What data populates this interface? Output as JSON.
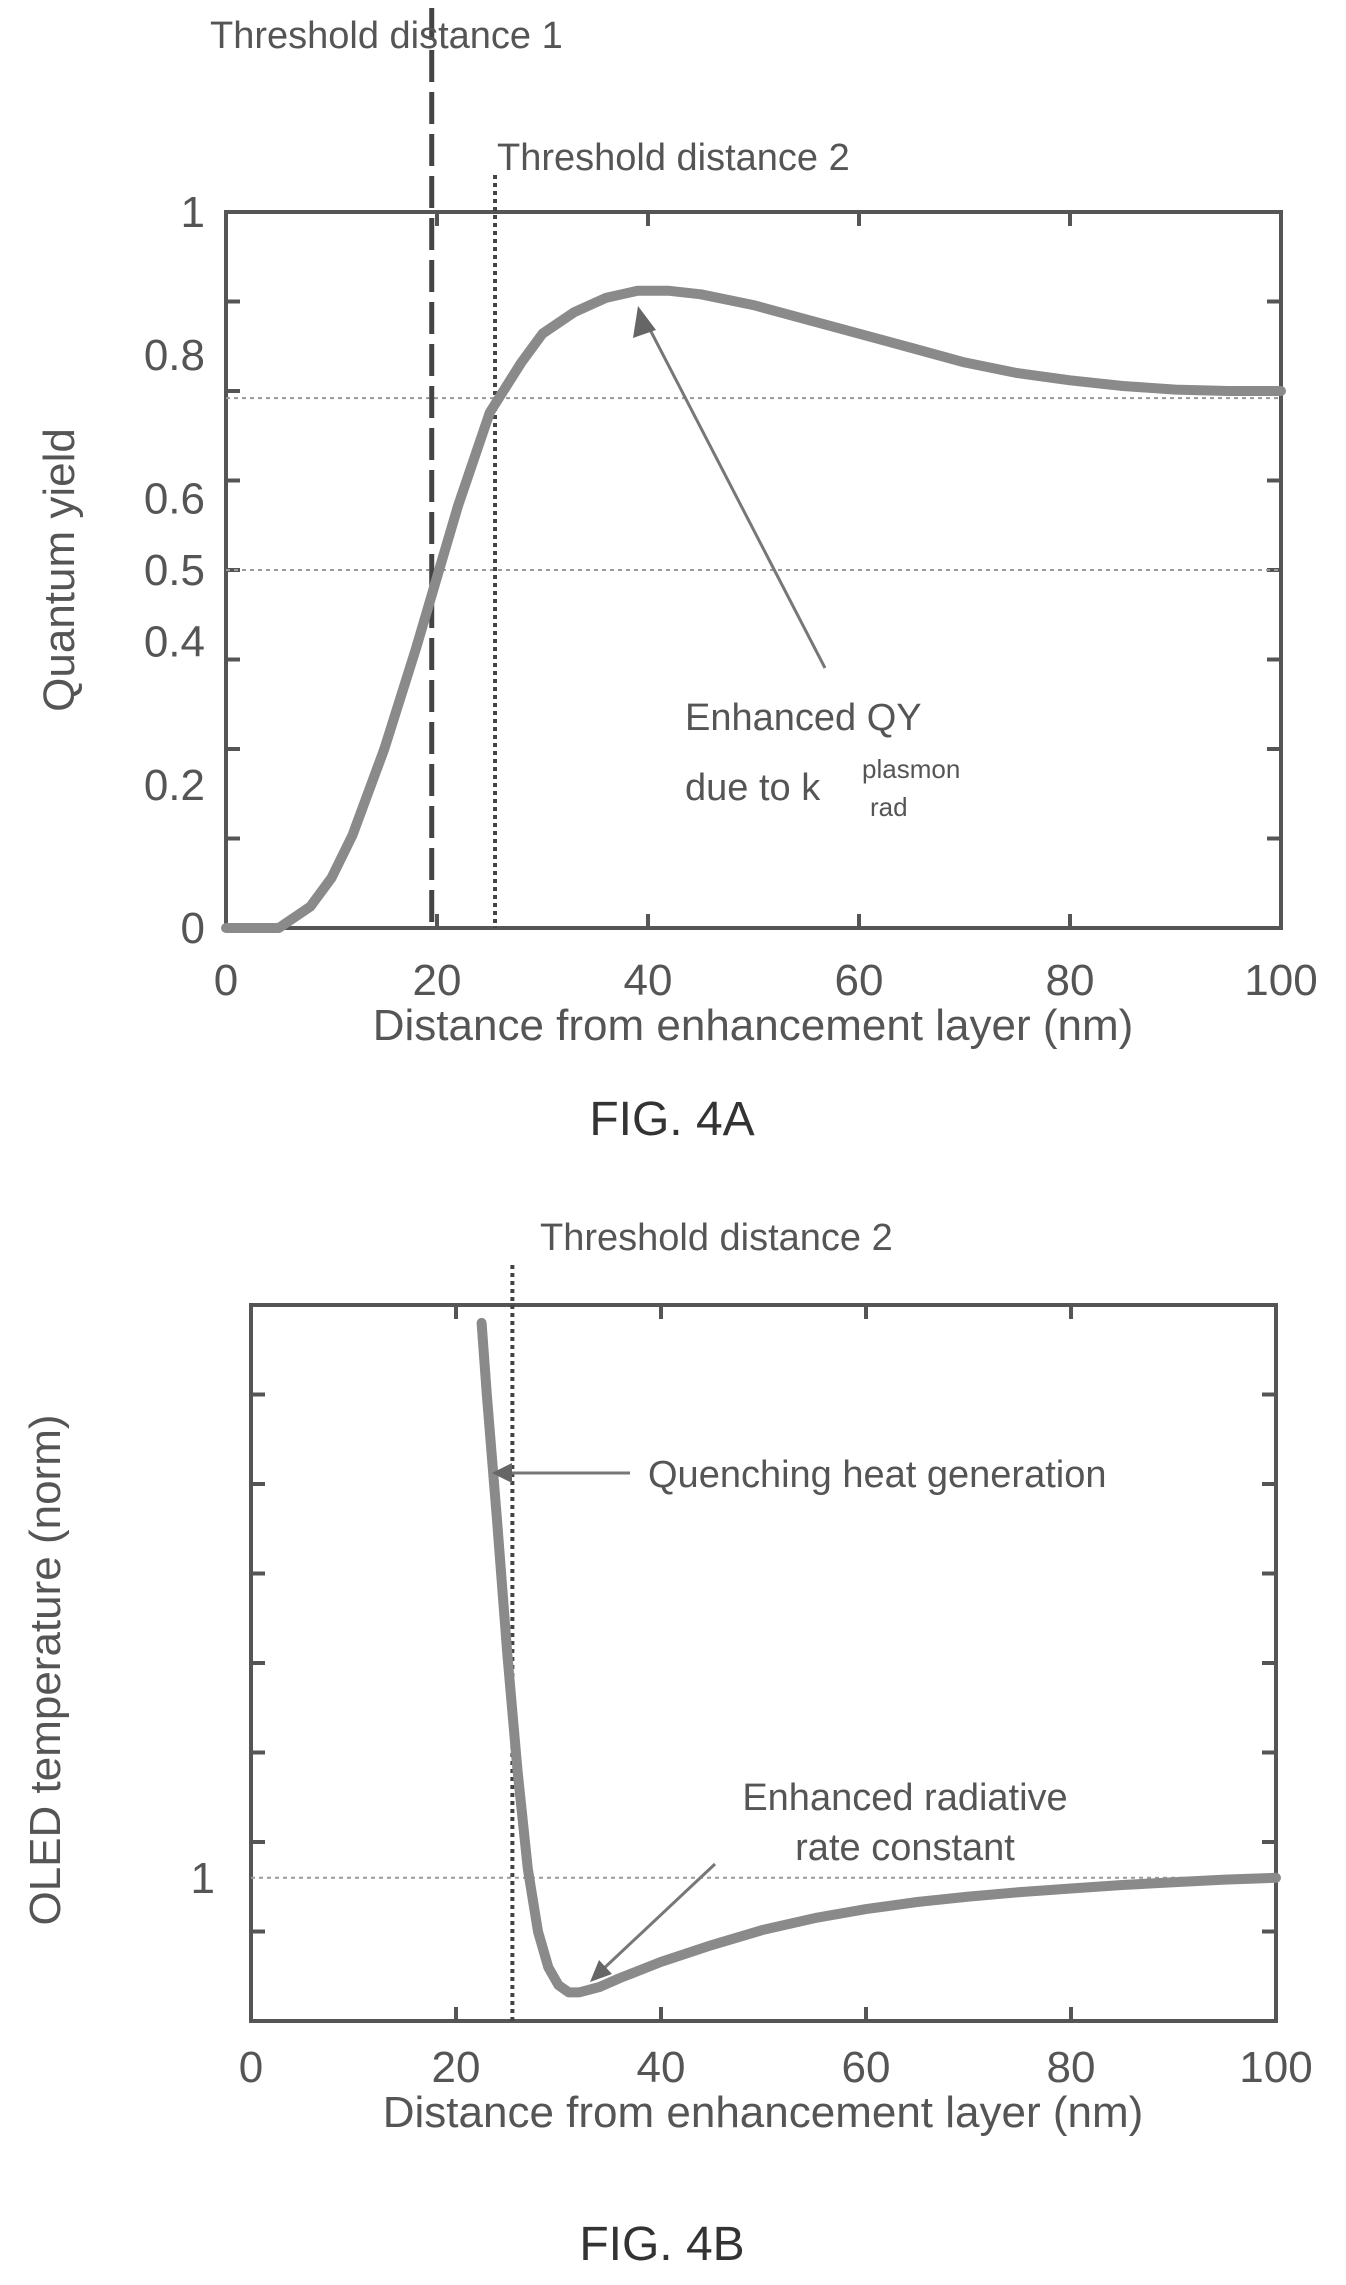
{
  "chart_data": [
    {
      "type": "line",
      "figure_label": "FIG. 4A",
      "xlabel": "Distance from enhancement layer (nm)",
      "ylabel": "Quantum yield",
      "xlim": [
        0,
        100
      ],
      "ylim": [
        0,
        1
      ],
      "x_ticks": [
        "0",
        "20",
        "40",
        "60",
        "80",
        "100"
      ],
      "y_ticks": [
        {
          "value": 0,
          "label": "0"
        },
        {
          "value": 0.2,
          "label": "0.2"
        },
        {
          "value": 0.4,
          "label": "0.4"
        },
        {
          "value": 0.5,
          "label": "0.5"
        },
        {
          "value": 0.6,
          "label": "0.6"
        },
        {
          "value": 0.8,
          "label": "0.8"
        },
        {
          "value": 1,
          "label": "1"
        }
      ],
      "grid": false,
      "reference_lines": [
        {
          "axis": "y",
          "value": 0.74
        },
        {
          "axis": "y",
          "value": 0.5
        }
      ],
      "thresholds": [
        {
          "label": "Threshold distance 1",
          "x": 19.5,
          "style": "dashed"
        },
        {
          "label": "Threshold distance 2",
          "x": 25.5,
          "style": "dotted"
        }
      ],
      "series": [
        {
          "x": [
            0,
            5,
            8,
            10,
            12,
            15,
            18,
            20,
            22,
            25,
            28,
            30,
            33,
            36,
            39,
            42,
            45,
            50,
            55,
            60,
            65,
            70,
            75,
            80,
            85,
            90,
            95,
            100
          ],
          "y": [
            0,
            0.0,
            0.03,
            0.07,
            0.13,
            0.25,
            0.39,
            0.49,
            0.59,
            0.72,
            0.79,
            0.83,
            0.86,
            0.88,
            0.89,
            0.89,
            0.885,
            0.87,
            0.85,
            0.83,
            0.81,
            0.79,
            0.775,
            0.765,
            0.757,
            0.752,
            0.75,
            0.75
          ]
        }
      ],
      "annotations": [
        {
          "text": "Enhanced QY",
          "line2": "due to k",
          "superscript": "plasmon",
          "subscript": "rad",
          "arrow_to": [
            38.5,
            0.89
          ]
        }
      ]
    },
    {
      "type": "line",
      "figure_label": "FIG. 4B",
      "xlabel": "Distance from enhancement layer (nm)",
      "ylabel": "OLED temperature (norm)",
      "xlim": [
        0,
        100
      ],
      "ylim": [
        0.84,
        1.64
      ],
      "x_ticks": [
        "0",
        "20",
        "40",
        "60",
        "80",
        "100"
      ],
      "y_ticks": [
        {
          "value": 1,
          "label": "1"
        }
      ],
      "grid": false,
      "reference_lines": [
        {
          "axis": "y",
          "value": 1
        }
      ],
      "thresholds": [
        {
          "label": "Threshold distance 2",
          "x": 25.5,
          "style": "dotted"
        }
      ],
      "series": [
        {
          "x": [
            22.5,
            23,
            24,
            25,
            26,
            27,
            28,
            29,
            30,
            31,
            32,
            34,
            36,
            40,
            45,
            50,
            55,
            60,
            65,
            70,
            75,
            80,
            85,
            90,
            95,
            100
          ],
          "y": [
            1.62,
            1.54,
            1.4,
            1.25,
            1.12,
            1.01,
            0.94,
            0.9,
            0.88,
            0.872,
            0.872,
            0.878,
            0.888,
            0.906,
            0.925,
            0.942,
            0.955,
            0.965,
            0.973,
            0.979,
            0.984,
            0.988,
            0.992,
            0.995,
            0.998,
            1.0
          ]
        }
      ],
      "annotations": [
        {
          "text": "Quenching heat generation",
          "arrow_to": [
            23.5,
            1.43
          ]
        },
        {
          "text": "Enhanced radiative",
          "line2": "rate constant",
          "arrow_to": [
            33,
            0.875
          ]
        }
      ]
    }
  ]
}
